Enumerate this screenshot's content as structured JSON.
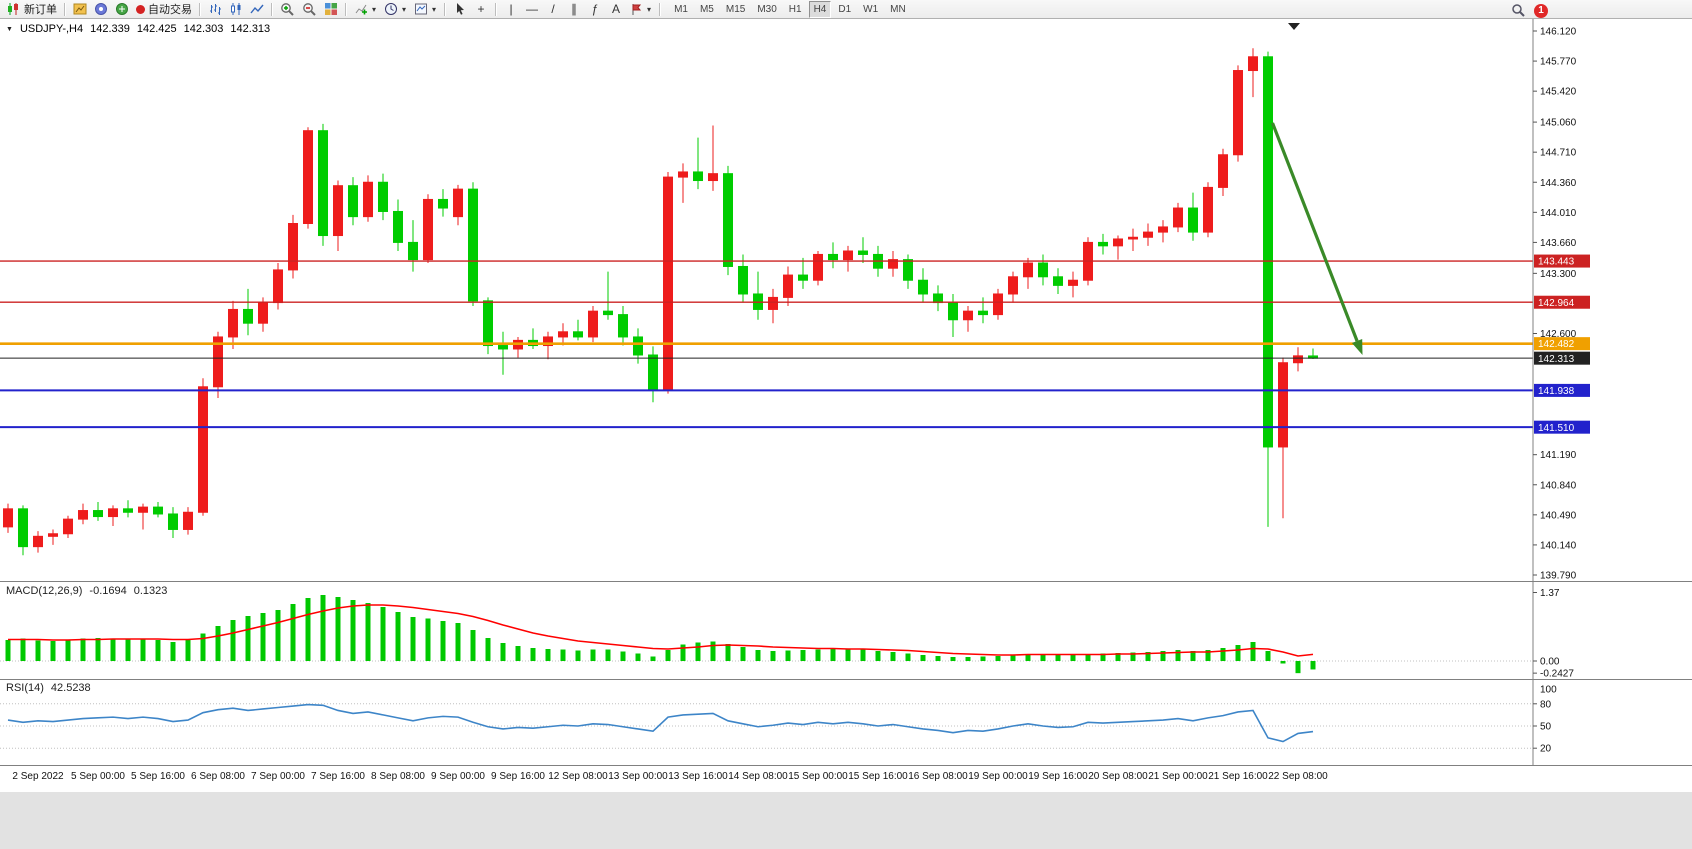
{
  "toolbar": {
    "new_order_label": "新订单",
    "autotrading_label": "自动交易",
    "timeframes": [
      "M1",
      "M5",
      "M15",
      "M30",
      "H1",
      "H4",
      "D1",
      "W1",
      "MN"
    ],
    "active_timeframe": "H4",
    "notification_badge": "1",
    "glyphs": {
      "caret": "▾",
      "expander": "▼",
      "crosshair": "+",
      "vline": "|",
      "hline": "—",
      "trendline": "/",
      "channel": "∥",
      "fibonacci": "ƒ",
      "text_tool": "A"
    }
  },
  "chart": {
    "title": "USDJPY-,H4",
    "open": "142.339",
    "high": "142.425",
    "low": "142.303",
    "close": "142.313"
  },
  "price_axis": [
    "146.120",
    "145.770",
    "145.420",
    "145.060",
    "144.710",
    "144.360",
    "144.010",
    "143.660",
    "143.300",
    "142.950",
    "142.600",
    "142.250",
    "141.900",
    "141.550",
    "141.190",
    "140.840",
    "140.490",
    "140.140",
    "139.790"
  ],
  "time_axis": [
    "2 Sep 2022",
    "5 Sep 00:00",
    "5 Sep 16:00",
    "6 Sep 08:00",
    "7 Sep 00:00",
    "7 Sep 16:00",
    "8 Sep 08:00",
    "9 Sep 00:00",
    "9 Sep 16:00",
    "12 Sep 08:00",
    "13 Sep 00:00",
    "13 Sep 16:00",
    "14 Sep 08:00",
    "15 Sep 00:00",
    "15 Sep 16:00",
    "16 Sep 08:00",
    "19 Sep 00:00",
    "19 Sep 16:00",
    "20 Sep 08:00",
    "21 Sep 00:00",
    "21 Sep 16:00",
    "22 Sep 08:00"
  ],
  "chart_data": {
    "type": "candlestick",
    "symbol": "USDJPY-",
    "timeframe": "H4",
    "colors": {
      "bull": "#ee1c1c",
      "bear": "#00cc00",
      "macd_hist": "#00c800",
      "macd_signal": "#ff0000",
      "rsi_line": "#3d85c8"
    },
    "candles": [
      [
        140.35,
        140.62,
        140.28,
        140.56
      ],
      [
        140.56,
        140.6,
        140.02,
        140.12
      ],
      [
        140.12,
        140.3,
        140.05,
        140.24
      ],
      [
        140.24,
        140.32,
        140.14,
        140.27
      ],
      [
        140.27,
        140.48,
        140.22,
        140.44
      ],
      [
        140.44,
        140.62,
        140.38,
        140.54
      ],
      [
        140.54,
        140.64,
        140.42,
        140.47
      ],
      [
        140.47,
        140.6,
        140.36,
        140.56
      ],
      [
        140.56,
        140.66,
        140.46,
        140.52
      ],
      [
        140.52,
        140.62,
        140.32,
        140.58
      ],
      [
        140.58,
        140.64,
        140.46,
        140.5
      ],
      [
        140.5,
        140.58,
        140.22,
        140.32
      ],
      [
        140.32,
        140.58,
        140.26,
        140.52
      ],
      [
        140.52,
        142.08,
        140.48,
        141.98
      ],
      [
        141.98,
        142.62,
        141.85,
        142.56
      ],
      [
        142.56,
        142.98,
        142.42,
        142.88
      ],
      [
        142.88,
        143.12,
        142.58,
        142.72
      ],
      [
        142.72,
        143.02,
        142.62,
        142.96
      ],
      [
        142.96,
        143.42,
        142.88,
        143.34
      ],
      [
        143.34,
        143.98,
        143.24,
        143.88
      ],
      [
        143.88,
        145.0,
        143.82,
        144.96
      ],
      [
        144.96,
        145.04,
        143.62,
        143.74
      ],
      [
        143.74,
        144.38,
        143.56,
        144.32
      ],
      [
        144.32,
        144.42,
        143.86,
        143.96
      ],
      [
        143.96,
        144.44,
        143.9,
        144.36
      ],
      [
        144.36,
        144.46,
        143.92,
        144.02
      ],
      [
        144.02,
        144.16,
        143.56,
        143.66
      ],
      [
        143.66,
        143.92,
        143.32,
        143.46
      ],
      [
        143.46,
        144.22,
        143.42,
        144.16
      ],
      [
        144.16,
        144.28,
        143.96,
        144.06
      ],
      [
        143.96,
        144.33,
        143.86,
        144.28
      ],
      [
        144.28,
        144.36,
        142.92,
        142.98
      ],
      [
        142.98,
        143.02,
        142.36,
        142.46
      ],
      [
        142.46,
        142.62,
        142.12,
        142.42
      ],
      [
        142.42,
        142.56,
        142.32,
        142.52
      ],
      [
        142.52,
        142.66,
        142.42,
        142.46
      ],
      [
        142.46,
        142.62,
        142.3,
        142.56
      ],
      [
        142.56,
        142.72,
        142.46,
        142.62
      ],
      [
        142.62,
        142.76,
        142.52,
        142.56
      ],
      [
        142.56,
        142.92,
        142.5,
        142.86
      ],
      [
        142.86,
        143.32,
        142.76,
        142.82
      ],
      [
        142.82,
        142.92,
        142.46,
        142.56
      ],
      [
        142.56,
        142.66,
        142.25,
        142.35
      ],
      [
        142.35,
        142.45,
        141.8,
        141.95
      ],
      [
        141.95,
        144.48,
        141.9,
        144.42
      ],
      [
        144.42,
        144.58,
        144.12,
        144.48
      ],
      [
        144.48,
        144.88,
        144.28,
        144.38
      ],
      [
        144.38,
        145.02,
        144.26,
        144.46
      ],
      [
        144.46,
        144.55,
        143.28,
        143.38
      ],
      [
        143.38,
        143.52,
        142.96,
        143.06
      ],
      [
        143.06,
        143.32,
        142.76,
        142.88
      ],
      [
        142.88,
        143.12,
        142.72,
        143.02
      ],
      [
        143.02,
        143.38,
        142.92,
        143.28
      ],
      [
        143.28,
        143.48,
        143.12,
        143.22
      ],
      [
        143.22,
        143.56,
        143.16,
        143.52
      ],
      [
        143.52,
        143.66,
        143.36,
        143.46
      ],
      [
        143.46,
        143.62,
        143.32,
        143.56
      ],
      [
        143.56,
        143.72,
        143.42,
        143.52
      ],
      [
        143.52,
        143.62,
        143.26,
        143.36
      ],
      [
        143.36,
        143.56,
        143.26,
        143.46
      ],
      [
        143.46,
        143.52,
        143.12,
        143.22
      ],
      [
        143.22,
        143.36,
        142.96,
        143.06
      ],
      [
        143.06,
        143.16,
        142.86,
        142.96
      ],
      [
        142.96,
        143.06,
        142.56,
        142.76
      ],
      [
        142.76,
        142.92,
        142.62,
        142.86
      ],
      [
        142.86,
        143.02,
        142.72,
        142.82
      ],
      [
        142.82,
        143.12,
        142.76,
        143.06
      ],
      [
        143.06,
        143.32,
        142.96,
        143.26
      ],
      [
        143.26,
        143.48,
        143.12,
        143.42
      ],
      [
        143.42,
        143.52,
        143.16,
        143.26
      ],
      [
        143.26,
        143.36,
        143.06,
        143.16
      ],
      [
        143.16,
        143.32,
        143.02,
        143.22
      ],
      [
        143.22,
        143.72,
        143.16,
        143.66
      ],
      [
        143.66,
        143.76,
        143.52,
        143.62
      ],
      [
        143.62,
        143.74,
        143.46,
        143.7
      ],
      [
        143.7,
        143.82,
        143.56,
        143.72
      ],
      [
        143.72,
        143.88,
        143.62,
        143.78
      ],
      [
        143.78,
        143.92,
        143.66,
        143.84
      ],
      [
        143.84,
        144.12,
        143.78,
        144.06
      ],
      [
        144.06,
        144.24,
        143.68,
        143.78
      ],
      [
        143.78,
        144.36,
        143.72,
        144.3
      ],
      [
        144.3,
        144.75,
        144.2,
        144.68
      ],
      [
        144.68,
        145.72,
        144.6,
        145.66
      ],
      [
        145.66,
        145.92,
        145.35,
        145.82
      ],
      [
        145.82,
        145.88,
        140.35,
        141.28
      ],
      [
        141.28,
        142.32,
        140.45,
        142.26
      ],
      [
        142.26,
        142.44,
        142.16,
        142.34
      ],
      [
        142.339,
        142.425,
        142.303,
        142.313
      ]
    ],
    "levels": [
      {
        "price": 143.443,
        "color": "#cc2222",
        "width": 1.4,
        "name": "resistance-line-143443"
      },
      {
        "price": 142.964,
        "color": "#cc2222",
        "width": 1.4,
        "name": "resistance-line-142964"
      },
      {
        "price": 142.482,
        "color": "#f0a000",
        "width": 2.6,
        "name": "key-level-line-142482"
      },
      {
        "price": 142.313,
        "color": "#222222",
        "width": 1,
        "current": true,
        "name": "current-price-line"
      },
      {
        "price": 141.938,
        "color": "#2222cc",
        "width": 2,
        "name": "support-line-141938"
      },
      {
        "price": 141.51,
        "color": "#2222cc",
        "width": 2,
        "name": "support-line-141510"
      }
    ],
    "current_price": 142.313,
    "annotation_arrow": {
      "from_index": 84.3,
      "from_price": 145.05,
      "to_index": 90.3,
      "to_price": 142.35,
      "color": "#3a8a28"
    },
    "macd": {
      "label": "MACD(12,26,9)",
      "value_main": "-0.1694",
      "value_signal": "0.1323",
      "axis_labels": [
        "1.37",
        "0.00",
        "-0.2427"
      ],
      "hist": [
        0.42,
        0.45,
        0.41,
        0.4,
        0.43,
        0.45,
        0.46,
        0.45,
        0.44,
        0.45,
        0.42,
        0.38,
        0.42,
        0.55,
        0.7,
        0.82,
        0.9,
        0.96,
        1.02,
        1.14,
        1.26,
        1.32,
        1.28,
        1.22,
        1.16,
        1.08,
        0.98,
        0.88,
        0.85,
        0.8,
        0.76,
        0.62,
        0.46,
        0.36,
        0.3,
        0.26,
        0.24,
        0.23,
        0.21,
        0.23,
        0.23,
        0.19,
        0.15,
        0.09,
        0.22,
        0.33,
        0.37,
        0.39,
        0.34,
        0.28,
        0.22,
        0.2,
        0.21,
        0.22,
        0.23,
        0.24,
        0.24,
        0.23,
        0.2,
        0.18,
        0.15,
        0.12,
        0.1,
        0.08,
        0.08,
        0.09,
        0.1,
        0.12,
        0.14,
        0.13,
        0.12,
        0.12,
        0.14,
        0.15,
        0.16,
        0.17,
        0.18,
        0.2,
        0.22,
        0.2,
        0.22,
        0.26,
        0.32,
        0.38,
        0.2,
        -0.05,
        -0.243,
        -0.169
      ],
      "signal": [
        0.43,
        0.43,
        0.43,
        0.42,
        0.42,
        0.43,
        0.43,
        0.44,
        0.44,
        0.44,
        0.44,
        0.43,
        0.43,
        0.45,
        0.5,
        0.56,
        0.63,
        0.7,
        0.77,
        0.85,
        0.93,
        1.0,
        1.06,
        1.1,
        1.12,
        1.12,
        1.1,
        1.07,
        1.03,
        0.99,
        0.95,
        0.89,
        0.81,
        0.72,
        0.64,
        0.56,
        0.5,
        0.45,
        0.4,
        0.37,
        0.34,
        0.31,
        0.28,
        0.25,
        0.24,
        0.26,
        0.28,
        0.31,
        0.32,
        0.31,
        0.3,
        0.28,
        0.27,
        0.26,
        0.25,
        0.25,
        0.24,
        0.24,
        0.23,
        0.22,
        0.21,
        0.19,
        0.17,
        0.15,
        0.14,
        0.13,
        0.12,
        0.12,
        0.13,
        0.13,
        0.13,
        0.13,
        0.13,
        0.13,
        0.14,
        0.14,
        0.15,
        0.16,
        0.17,
        0.18,
        0.18,
        0.2,
        0.22,
        0.25,
        0.24,
        0.18,
        0.1,
        0.1323
      ]
    },
    "rsi": {
      "label": "RSI(14)",
      "value": "42.5238",
      "axis_top": "100",
      "levels": [
        80,
        50,
        20
      ],
      "values": [
        58,
        55,
        57,
        56,
        58,
        60,
        61,
        62,
        60,
        62,
        60,
        56,
        58,
        68,
        72,
        74,
        71,
        73,
        75,
        77,
        79,
        78,
        71,
        67,
        69,
        65,
        61,
        57,
        61,
        63,
        62,
        55,
        49,
        46,
        48,
        47,
        49,
        51,
        50,
        53,
        52,
        49,
        46,
        43,
        62,
        65,
        66,
        67,
        57,
        53,
        49,
        51,
        54,
        52,
        55,
        53,
        55,
        53,
        50,
        52,
        49,
        46,
        44,
        41,
        44,
        43,
        46,
        50,
        53,
        50,
        48,
        49,
        55,
        54,
        55,
        56,
        57,
        58,
        60,
        57,
        61,
        64,
        69,
        71,
        34,
        29,
        40,
        42.52
      ]
    }
  }
}
